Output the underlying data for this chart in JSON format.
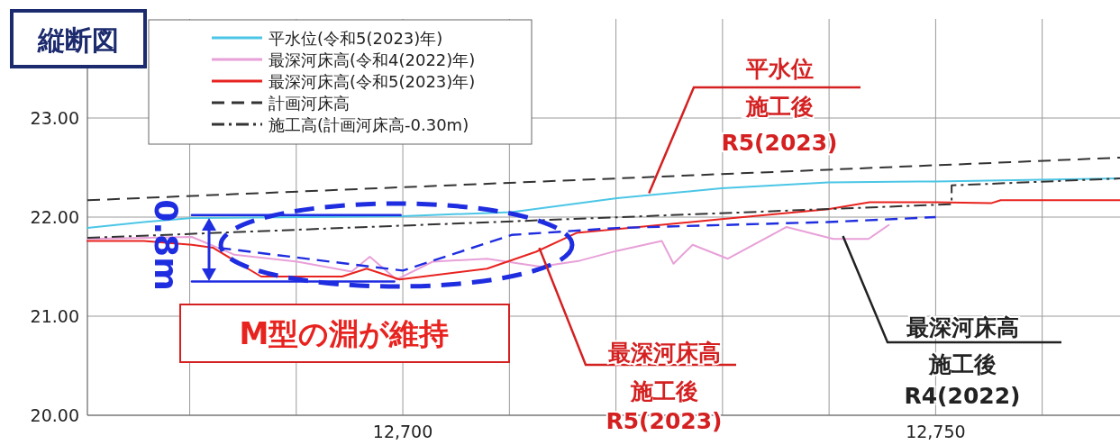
{
  "chart_data": {
    "type": "line",
    "title": "縦断図",
    "xlim": [
      12670.4,
      12767.3
    ],
    "ylim": [
      20,
      24
    ],
    "xticks": [
      {
        "value": 12680,
        "label": null
      },
      {
        "value": 12690,
        "label": null
      },
      {
        "value": 12700,
        "label": "12,700"
      },
      {
        "value": 12710,
        "label": null
      },
      {
        "value": 12720,
        "label": null
      },
      {
        "value": 12730,
        "label": null
      },
      {
        "value": 12740,
        "label": null
      },
      {
        "value": 12750,
        "label": "12,750"
      },
      {
        "value": 12760,
        "label": null
      }
    ],
    "yticks": [
      {
        "value": 20,
        "label": "20.00"
      },
      {
        "value": 21,
        "label": "21.00"
      },
      {
        "value": 22,
        "label": "22.00"
      },
      {
        "value": 23,
        "label": "23.00"
      }
    ],
    "grid": true,
    "legend": "top left",
    "series": [
      {
        "name": "平水位(令和5(2023)年)",
        "color": "#4cc6e6",
        "line_style": "solid",
        "x": [
          12670.4,
          12675.7,
          12680.2,
          12700,
          12710.2,
          12720.1,
          12729.9,
          12739.9,
          12750,
          12767.3
        ],
        "values": [
          21.89,
          21.95,
          21.99,
          22.01,
          22.05,
          22.19,
          22.29,
          22.35,
          22.36,
          22.39
        ]
      },
      {
        "name": "最深河床高(令和4(2022)年)",
        "color": "#e8a0d8",
        "line_style": "solid",
        "x": [
          12670.4,
          12680.2,
          12684.2,
          12690.1,
          12695.2,
          12696.9,
          12699.4,
          12702.8,
          12707.9,
          12712.9,
          12716.6,
          12720.1,
          12724.3,
          12725.4,
          12727.2,
          12730.5,
          12736,
          12740.4,
          12743.7,
          12745.6
        ],
        "values": [
          21.78,
          21.8,
          21.62,
          21.55,
          21.45,
          21.6,
          21.37,
          21.55,
          21.58,
          21.5,
          21.56,
          21.66,
          21.76,
          21.53,
          21.72,
          21.58,
          21.9,
          21.78,
          21.78,
          21.92
        ]
      },
      {
        "name": "最深河床高(令和5(2023)年)",
        "color": "#e8231f",
        "line_style": "solid",
        "x": [
          12670.4,
          12675.7,
          12680.2,
          12682.2,
          12686.7,
          12694.3,
          12696.6,
          12699.7,
          12707.9,
          12712.5,
          12716.3,
          12729.9,
          12739.9,
          12743.8,
          12750,
          12755.2,
          12756.1,
          12767.3
        ],
        "values": [
          21.76,
          21.76,
          21.72,
          21.69,
          21.4,
          21.4,
          21.48,
          21.37,
          21.48,
          21.65,
          21.84,
          21.98,
          22.08,
          22.15,
          22.15,
          22.14,
          22.17,
          22.17
        ]
      },
      {
        "name": "計画河床高",
        "color": "#333333",
        "line_style": "dashed",
        "x": [
          12670.4,
          12767.3
        ],
        "values": [
          22.17,
          22.6
        ]
      },
      {
        "name": "施工高(計画河床高-0.30m)",
        "color": "#333333",
        "line_style": "dashdot",
        "x": [
          12670.4,
          12751.5,
          12751.5,
          12767.3
        ],
        "values": [
          21.79,
          22.13,
          22.32,
          22.39
        ]
      },
      {
        "color": "#1f2de0",
        "line_style": "dashed",
        "x": [
          12682.7,
          12700,
          12710.2,
          12720.1,
          12739.9,
          12750
        ],
        "values": [
          21.69,
          21.46,
          21.82,
          21.89,
          21.95,
          22.0
        ]
      },
      {
        "color": "#1f2de0",
        "line_style": "solid",
        "x": [
          12680.2,
          12699.8
        ],
        "values": [
          22.02,
          22.02
        ]
      },
      {
        "color": "#1f2de0",
        "line_style": "solid",
        "x": [
          12680.2,
          12699.2
        ],
        "values": [
          21.35,
          21.35
        ]
      }
    ],
    "annotations": [
      {
        "text": "平水位",
        "x": 12723.1,
        "y": 22.24
      },
      "施工後",
      "R5(2023)",
      {
        "text": "最深河床高",
        "x": 12712.8,
        "y": 21.69
      },
      "施工後",
      "R5(2023)",
      {
        "text": "最深河床高",
        "x": 12741.3,
        "y": 21.81
      },
      "施工後",
      "R4(2022)",
      "M型の淵が維持",
      "0.8m"
    ]
  }
}
